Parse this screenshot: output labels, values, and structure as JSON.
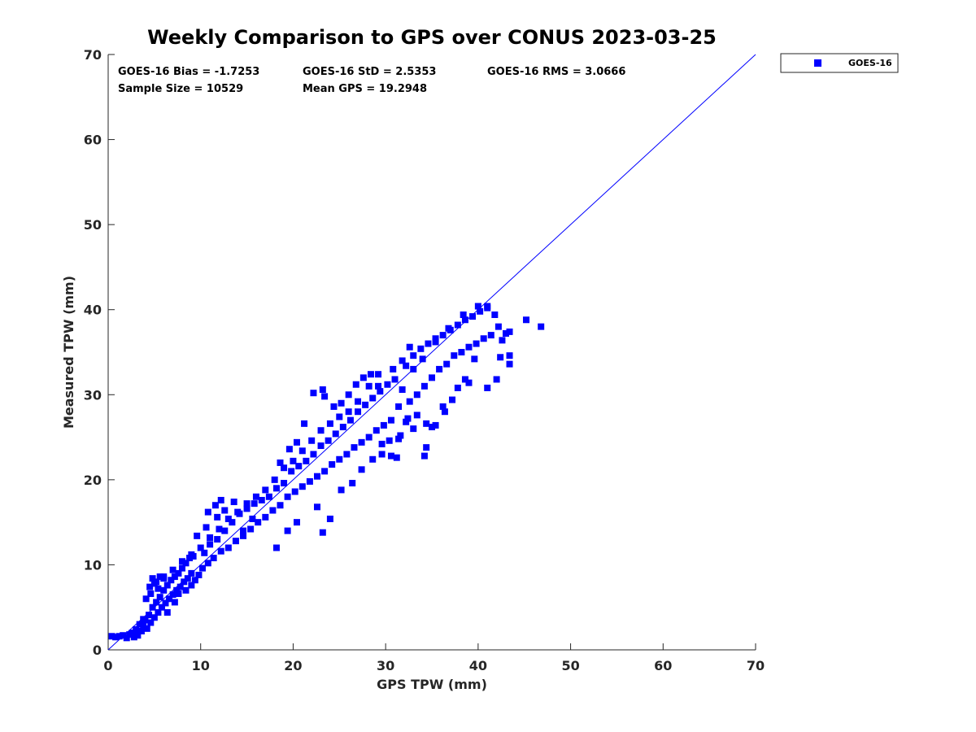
{
  "chart_data": {
    "type": "scatter",
    "title": "Weekly Comparison to GPS over CONUS 2023-03-25",
    "xlabel": "GPS TPW (mm)",
    "ylabel": "Measured TPW (mm)",
    "xlim": [
      0,
      70
    ],
    "ylim": [
      0,
      70
    ],
    "xticks": [
      0,
      10,
      20,
      30,
      40,
      50,
      60,
      70
    ],
    "yticks": [
      0,
      10,
      20,
      30,
      40,
      50,
      60,
      70
    ],
    "grid": false,
    "legend_position": "outside-top-right",
    "reference_line": {
      "x": [
        0,
        70
      ],
      "y": [
        0,
        70
      ],
      "color": "#0000ff"
    },
    "stats": {
      "bias": "GOES-16 Bias = -1.7253",
      "std": "GOES-16 StD = 2.5353",
      "rms": "GOES-16 RMS = 3.0666",
      "sample_size": "Sample Size = 10529",
      "mean_gps": "Mean GPS = 19.2948"
    },
    "series": [
      {
        "name": "GOES-16",
        "color": "#0000ff",
        "marker": "square",
        "points": [
          [
            0.4,
            1.6
          ],
          [
            0.8,
            1.5
          ],
          [
            1.2,
            1.6
          ],
          [
            1.6,
            1.7
          ],
          [
            2.0,
            1.4
          ],
          [
            2.3,
            1.8
          ],
          [
            2.6,
            2.0
          ],
          [
            2.8,
            1.5
          ],
          [
            3.0,
            2.4
          ],
          [
            3.2,
            1.7
          ],
          [
            3.4,
            3.0
          ],
          [
            3.6,
            2.2
          ],
          [
            3.8,
            2.8
          ],
          [
            4.0,
            3.5
          ],
          [
            4.2,
            2.5
          ],
          [
            4.4,
            4.1
          ],
          [
            4.6,
            3.2
          ],
          [
            4.8,
            5.0
          ],
          [
            5.0,
            3.8
          ],
          [
            5.2,
            5.6
          ],
          [
            5.4,
            4.4
          ],
          [
            5.6,
            6.2
          ],
          [
            5.8,
            5.0
          ],
          [
            6.0,
            7.0
          ],
          [
            6.2,
            5.5
          ],
          [
            6.4,
            7.6
          ],
          [
            6.6,
            6.0
          ],
          [
            6.8,
            8.2
          ],
          [
            7.0,
            6.5
          ],
          [
            7.2,
            8.6
          ],
          [
            7.4,
            7.0
          ],
          [
            7.6,
            9.0
          ],
          [
            7.8,
            7.4
          ],
          [
            8.0,
            9.6
          ],
          [
            8.2,
            8.0
          ],
          [
            8.4,
            10.2
          ],
          [
            8.6,
            8.4
          ],
          [
            8.8,
            10.8
          ],
          [
            9.0,
            9.0
          ],
          [
            9.2,
            11.0
          ],
          [
            4.5,
            7.4
          ],
          [
            4.8,
            8.4
          ],
          [
            5.2,
            8.0
          ],
          [
            5.6,
            8.6
          ],
          [
            6.0,
            8.4
          ],
          [
            3.8,
            3.6
          ],
          [
            4.1,
            6.0
          ],
          [
            4.6,
            6.6
          ],
          [
            5.4,
            7.2
          ],
          [
            6.4,
            4.4
          ],
          [
            7.2,
            5.6
          ],
          [
            7.6,
            6.6
          ],
          [
            8.4,
            7.0
          ],
          [
            9.0,
            7.6
          ],
          [
            9.4,
            8.2
          ],
          [
            9.8,
            8.8
          ],
          [
            10.2,
            9.6
          ],
          [
            10.4,
            11.4
          ],
          [
            10.8,
            10.2
          ],
          [
            11.0,
            12.4
          ],
          [
            11.4,
            10.8
          ],
          [
            11.8,
            13.0
          ],
          [
            12.2,
            11.6
          ],
          [
            12.6,
            14.0
          ],
          [
            13.0,
            12.0
          ],
          [
            13.4,
            15.0
          ],
          [
            13.8,
            12.8
          ],
          [
            14.2,
            16.0
          ],
          [
            14.6,
            13.4
          ],
          [
            15.0,
            16.6
          ],
          [
            15.4,
            14.2
          ],
          [
            15.8,
            17.2
          ],
          [
            16.2,
            15.0
          ],
          [
            16.6,
            17.6
          ],
          [
            17.0,
            15.6
          ],
          [
            17.4,
            18.0
          ],
          [
            17.8,
            16.4
          ],
          [
            18.2,
            19.0
          ],
          [
            18.6,
            17.0
          ],
          [
            19.0,
            19.6
          ],
          [
            11.8,
            15.6
          ],
          [
            12.6,
            16.4
          ],
          [
            13.6,
            17.4
          ],
          [
            10.6,
            14.4
          ],
          [
            9.6,
            13.4
          ],
          [
            10.8,
            16.2
          ],
          [
            11.6,
            17.0
          ],
          [
            12.2,
            17.6
          ],
          [
            14.6,
            14.0
          ],
          [
            15.6,
            15.4
          ],
          [
            19.4,
            18.0
          ],
          [
            19.8,
            21.0
          ],
          [
            20.2,
            18.6
          ],
          [
            20.6,
            21.6
          ],
          [
            21.0,
            19.2
          ],
          [
            21.4,
            22.2
          ],
          [
            21.8,
            19.8
          ],
          [
            22.2,
            23.0
          ],
          [
            22.6,
            20.4
          ],
          [
            23.0,
            24.0
          ],
          [
            23.4,
            21.0
          ],
          [
            23.8,
            24.6
          ],
          [
            24.2,
            21.8
          ],
          [
            24.6,
            25.4
          ],
          [
            25.0,
            22.4
          ],
          [
            25.4,
            26.2
          ],
          [
            25.8,
            23.0
          ],
          [
            26.2,
            27.0
          ],
          [
            26.6,
            23.8
          ],
          [
            27.0,
            28.0
          ],
          [
            27.4,
            24.4
          ],
          [
            27.8,
            28.8
          ],
          [
            28.2,
            25.0
          ],
          [
            28.6,
            29.6
          ],
          [
            29.0,
            25.8
          ],
          [
            29.4,
            30.4
          ],
          [
            29.8,
            26.4
          ],
          [
            30.2,
            31.2
          ],
          [
            30.6,
            27.0
          ],
          [
            31.0,
            31.8
          ],
          [
            18.6,
            22.0
          ],
          [
            19.6,
            23.6
          ],
          [
            20.4,
            24.4
          ],
          [
            21.2,
            26.6
          ],
          [
            22.2,
            30.2
          ],
          [
            23.2,
            30.6
          ],
          [
            23.4,
            29.8
          ],
          [
            23.2,
            13.8
          ],
          [
            24.4,
            28.6
          ],
          [
            25.2,
            29.0
          ],
          [
            26.0,
            30.0
          ],
          [
            26.8,
            31.2
          ],
          [
            27.6,
            32.0
          ],
          [
            28.4,
            32.4
          ],
          [
            29.2,
            31.0
          ],
          [
            29.6,
            24.2
          ],
          [
            30.4,
            24.6
          ],
          [
            31.2,
            22.6
          ],
          [
            31.6,
            25.2
          ],
          [
            32.2,
            26.8
          ],
          [
            31.4,
            28.6
          ],
          [
            31.8,
            30.6
          ],
          [
            32.2,
            33.4
          ],
          [
            32.6,
            29.2
          ],
          [
            33.0,
            34.6
          ],
          [
            33.4,
            30.0
          ],
          [
            33.8,
            35.4
          ],
          [
            34.2,
            31.0
          ],
          [
            34.6,
            36.0
          ],
          [
            35.0,
            32.0
          ],
          [
            35.4,
            36.6
          ],
          [
            35.8,
            33.0
          ],
          [
            36.2,
            37.0
          ],
          [
            36.6,
            33.6
          ],
          [
            37.0,
            37.6
          ],
          [
            37.4,
            34.6
          ],
          [
            37.8,
            38.2
          ],
          [
            38.2,
            35.0
          ],
          [
            38.6,
            38.8
          ],
          [
            39.0,
            35.6
          ],
          [
            39.4,
            39.2
          ],
          [
            39.8,
            36.0
          ],
          [
            40.2,
            39.8
          ],
          [
            40.6,
            36.6
          ],
          [
            41.0,
            40.2
          ],
          [
            41.4,
            37.0
          ],
          [
            41.8,
            39.4
          ],
          [
            42.2,
            38.0
          ],
          [
            42.6,
            36.4
          ],
          [
            43.0,
            37.2
          ],
          [
            43.4,
            37.4
          ],
          [
            42.4,
            34.4
          ],
          [
            43.4,
            34.6
          ],
          [
            43.4,
            33.6
          ],
          [
            42.0,
            31.8
          ],
          [
            41.0,
            30.8
          ],
          [
            39.0,
            31.4
          ],
          [
            37.2,
            29.4
          ],
          [
            35.4,
            26.4
          ],
          [
            36.4,
            28.0
          ],
          [
            34.2,
            22.8
          ],
          [
            34.4,
            23.8
          ],
          [
            33.0,
            26.0
          ],
          [
            45.2,
            38.8
          ],
          [
            46.8,
            38.0
          ],
          [
            40.0,
            40.4
          ],
          [
            41.0,
            40.4
          ],
          [
            38.4,
            39.4
          ],
          [
            36.8,
            37.8
          ],
          [
            35.4,
            36.2
          ],
          [
            34.0,
            34.2
          ],
          [
            33.0,
            33.0
          ],
          [
            32.6,
            35.6
          ],
          [
            31.8,
            34.0
          ],
          [
            30.8,
            33.0
          ],
          [
            29.2,
            32.4
          ],
          [
            28.2,
            31.0
          ],
          [
            27.0,
            29.2
          ],
          [
            26.0,
            28.0
          ],
          [
            25.0,
            27.4
          ],
          [
            24.0,
            26.6
          ],
          [
            23.0,
            25.8
          ],
          [
            22.0,
            24.6
          ],
          [
            21.0,
            23.4
          ],
          [
            20.0,
            22.2
          ],
          [
            19.0,
            21.4
          ],
          [
            18.0,
            20.0
          ],
          [
            17.0,
            18.8
          ],
          [
            16.0,
            18.0
          ],
          [
            15.0,
            17.2
          ],
          [
            14.0,
            16.2
          ],
          [
            13.0,
            15.4
          ],
          [
            12.0,
            14.2
          ],
          [
            11.0,
            13.2
          ],
          [
            10.0,
            12.0
          ],
          [
            9.0,
            11.2
          ],
          [
            8.0,
            10.4
          ],
          [
            7.0,
            9.4
          ],
          [
            6.0,
            8.6
          ],
          [
            5.0,
            7.8
          ],
          [
            18.2,
            12.0
          ],
          [
            19.4,
            14.0
          ],
          [
            20.4,
            15.0
          ],
          [
            22.6,
            16.8
          ],
          [
            24.0,
            15.4
          ],
          [
            25.2,
            18.8
          ],
          [
            26.4,
            19.6
          ],
          [
            27.4,
            21.2
          ],
          [
            28.6,
            22.4
          ],
          [
            29.6,
            23.0
          ],
          [
            30.6,
            22.8
          ],
          [
            31.4,
            24.8
          ],
          [
            32.4,
            27.2
          ],
          [
            33.4,
            27.6
          ],
          [
            34.4,
            26.6
          ],
          [
            35.0,
            26.2
          ],
          [
            36.2,
            28.6
          ],
          [
            37.8,
            30.8
          ],
          [
            38.6,
            31.8
          ],
          [
            39.6,
            34.2
          ]
        ]
      }
    ]
  }
}
